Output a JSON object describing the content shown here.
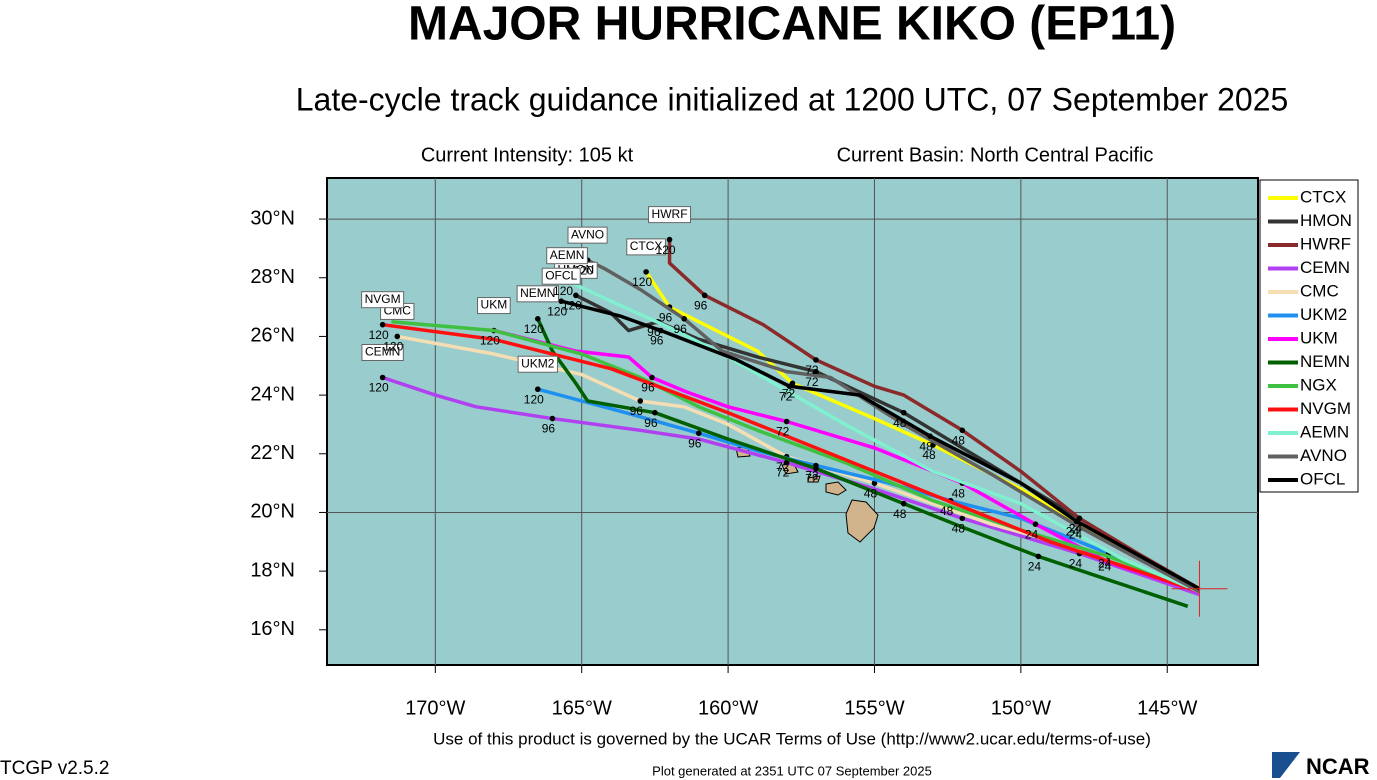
{
  "header": {
    "title": "MAJOR HURRICANE KIKO (EP11)",
    "subtitle": "Late-cycle track guidance initialized at 1200 UTC, 07 September 2025",
    "intensity": "Current Intensity: 105 kt",
    "basin": "Current Basin: North Central Pacific"
  },
  "chart_data": {
    "type": "track-map",
    "xlim": [
      -173.7,
      -141.9
    ],
    "ylim": [
      14.8,
      31.4
    ],
    "xticks": [
      {
        "value": -170,
        "label": "170°W"
      },
      {
        "value": -165,
        "label": "165°W"
      },
      {
        "value": -160,
        "label": "160°W"
      },
      {
        "value": -155,
        "label": "155°W"
      },
      {
        "value": -150,
        "label": "150°W"
      },
      {
        "value": -145,
        "label": "145°W"
      }
    ],
    "yticks": [
      {
        "value": 16,
        "label": "16°N"
      },
      {
        "value": 18,
        "label": "18°N"
      },
      {
        "value": 20,
        "label": "20°N"
      },
      {
        "value": 22,
        "label": "22°N"
      },
      {
        "value": 24,
        "label": "24°N"
      },
      {
        "value": 26,
        "label": "26°N"
      },
      {
        "value": 28,
        "label": "28°N"
      },
      {
        "value": 30,
        "label": "30°N"
      }
    ],
    "grid": true,
    "legend": "right",
    "series": [
      {
        "name": "CTCX",
        "color": "#ffff00",
        "tag": true,
        "x": [
          -143.9,
          -148,
          -150,
          -153,
          -155,
          -157.8,
          -159,
          -160,
          -162,
          -162.8
        ],
        "values": [
          17.4,
          19.6,
          20.8,
          22.3,
          23.2,
          24.4,
          25.5,
          26.0,
          27.0,
          28.2
        ],
        "point_labels": [
          null,
          "24",
          null,
          "48",
          null,
          "72",
          null,
          null,
          "96",
          "120"
        ]
      },
      {
        "name": "HMON",
        "color": "#333333",
        "tag": true,
        "x": [
          -143.9,
          -148,
          -151,
          -154,
          -157,
          -159,
          -161,
          -162.4,
          -163.4,
          -164,
          -165.2
        ],
        "values": [
          17.3,
          19.8,
          21.6,
          23.4,
          24.8,
          25.3,
          25.9,
          26.5,
          26.2,
          26.8,
          27.4
        ],
        "point_labels": [
          null,
          "24",
          null,
          "48",
          "72",
          null,
          null,
          "96",
          null,
          null,
          "120"
        ]
      },
      {
        "name": "HWRF",
        "color": "#8b2a2a",
        "tag": true,
        "x": [
          -143.9,
          -146,
          -148,
          -150,
          -152,
          -154,
          -155,
          -157,
          -158.8,
          -160.8,
          -162,
          -162
        ],
        "values": [
          17.4,
          18.6,
          19.8,
          21.4,
          22.8,
          24.0,
          24.3,
          25.2,
          26.4,
          27.4,
          28.5,
          29.3
        ],
        "point_labels": [
          null,
          null,
          "24",
          null,
          "48",
          null,
          null,
          "72",
          null,
          "96",
          null,
          "120"
        ]
      },
      {
        "name": "CEMN",
        "color": "#b040f0",
        "tag": true,
        "x": [
          -143.9,
          -148,
          -152,
          -155,
          -158,
          -161,
          -163,
          -166,
          -168.6,
          -170,
          -171.8
        ],
        "values": [
          17.2,
          18.6,
          19.8,
          20.8,
          21.7,
          22.5,
          22.8,
          23.2,
          23.6,
          24.0,
          24.6
        ],
        "point_labels": [
          null,
          "24",
          "48",
          null,
          "72",
          null,
          null,
          "96",
          null,
          null,
          "120"
        ]
      },
      {
        "name": "CMC",
        "color": "#f5deb3",
        "tag": true,
        "x": [
          -143.9,
          -147,
          -151,
          -155,
          -158,
          -160,
          -161.5,
          -163,
          -165,
          -168,
          -171.3
        ],
        "values": [
          17.3,
          18.5,
          19.6,
          21.0,
          21.9,
          23.0,
          23.6,
          23.8,
          24.7,
          25.4,
          26.0
        ],
        "point_labels": [
          null,
          "24",
          null,
          "48",
          "72",
          null,
          null,
          "96",
          null,
          null,
          "120"
        ]
      },
      {
        "name": "UKM2",
        "color": "#2090f0",
        "tag": true,
        "x": [
          -143.9,
          -147,
          -150,
          -152.4,
          -154.5,
          -157,
          -159,
          -161,
          -163.5,
          -166.5
        ],
        "values": [
          17.3,
          18.6,
          19.8,
          20.4,
          21.0,
          21.6,
          22.1,
          22.7,
          23.4,
          24.2
        ],
        "point_labels": [
          null,
          "24",
          null,
          "48",
          null,
          "72",
          null,
          "96",
          null,
          "120"
        ]
      },
      {
        "name": "UKM",
        "color": "#ff00ff",
        "tag": true,
        "x": [
          -143.9,
          -147,
          -149.5,
          -152,
          -155,
          -158,
          -160,
          -161.4,
          -162.6,
          -163.4,
          -165.2,
          -168
        ],
        "values": [
          17.3,
          18.3,
          19.6,
          21.0,
          22.2,
          23.1,
          23.6,
          24.1,
          24.6,
          25.3,
          25.5,
          26.2
        ],
        "point_labels": [
          null,
          null,
          "24",
          "48",
          null,
          "72",
          null,
          null,
          "96",
          null,
          null,
          "120"
        ]
      },
      {
        "name": "NEMN",
        "color": "#006000",
        "tag": true,
        "x": [
          -144.3,
          -147,
          -149.4,
          -152,
          -154,
          -157,
          -160,
          -162.5,
          -164.8,
          -165.2,
          -166,
          -166.5
        ],
        "values": [
          16.8,
          17.7,
          18.5,
          19.5,
          20.3,
          21.5,
          22.5,
          23.4,
          23.8,
          24.4,
          25.5,
          26.6
        ],
        "point_labels": [
          null,
          null,
          "24",
          null,
          "48",
          "72",
          null,
          "96",
          null,
          null,
          null,
          "120"
        ]
      },
      {
        "name": "NGX",
        "color": "#40c040",
        "tag": false,
        "x": [
          -143.9,
          -147,
          -150,
          -153,
          -156,
          -159,
          -161,
          -163,
          -165,
          -168,
          -171.5
        ],
        "values": [
          17.3,
          18.5,
          19.4,
          20.4,
          21.7,
          22.8,
          23.6,
          24.6,
          25.4,
          26.2,
          26.5
        ],
        "point_labels": [
          null,
          null,
          null,
          null,
          null,
          null,
          null,
          null,
          null,
          null,
          null
        ]
      },
      {
        "name": "NVGM",
        "color": "#ff1010",
        "tag": true,
        "x": [
          -143.9,
          -146,
          -149,
          -152,
          -156,
          -160,
          -164,
          -168,
          -171.8
        ],
        "values": [
          17.3,
          18.0,
          19.0,
          20.2,
          21.8,
          23.4,
          24.9,
          25.9,
          26.4
        ],
        "point_labels": [
          null,
          null,
          null,
          null,
          null,
          null,
          null,
          null,
          "120"
        ]
      },
      {
        "name": "AEMN",
        "color": "#80f0d0",
        "tag": true,
        "x": [
          -143.9,
          -146.5,
          -150,
          -153,
          -156,
          -160,
          -162,
          -164,
          -165.5
        ],
        "values": [
          17.3,
          18.4,
          20.3,
          21.4,
          23.0,
          25.3,
          26.3,
          27.2,
          27.9
        ],
        "point_labels": [
          null,
          null,
          null,
          null,
          null,
          null,
          null,
          null,
          "120"
        ]
      },
      {
        "name": "AVNO",
        "color": "#606060",
        "tag": true,
        "x": [
          -143.9,
          -148,
          -151,
          -154,
          -156.5,
          -158,
          -160.2,
          -161.5,
          -163,
          -164.2,
          -164.8
        ],
        "values": [
          17.3,
          19.5,
          21.3,
          23.0,
          24.6,
          24.8,
          25.5,
          26.6,
          27.6,
          28.3,
          28.6
        ],
        "point_labels": [
          null,
          null,
          null,
          null,
          null,
          null,
          null,
          "96",
          null,
          null,
          "120"
        ]
      },
      {
        "name": "OFCL",
        "color": "#000000",
        "tag": true,
        "x": [
          -143.9,
          -148.1,
          -150.0,
          -153.1,
          -155.5,
          -157.9,
          -159.7,
          -162.3,
          -163.7,
          -165.7
        ],
        "values": [
          17.4,
          19.7,
          21.0,
          22.6,
          24.0,
          24.3,
          25.2,
          26.2,
          26.7,
          27.2
        ],
        "point_labels": [
          null,
          "24",
          null,
          "48",
          null,
          "72",
          null,
          "96",
          null,
          "120"
        ]
      }
    ]
  },
  "footer": {
    "terms": "Use of this product is governed by the UCAR Terms of Use (http://www2.ucar.edu/terms-of-use)",
    "version": "TCGP v2.5.2",
    "generated": "Plot generated at 2351 UTC   07 September 2025",
    "logo": "NCAR"
  }
}
